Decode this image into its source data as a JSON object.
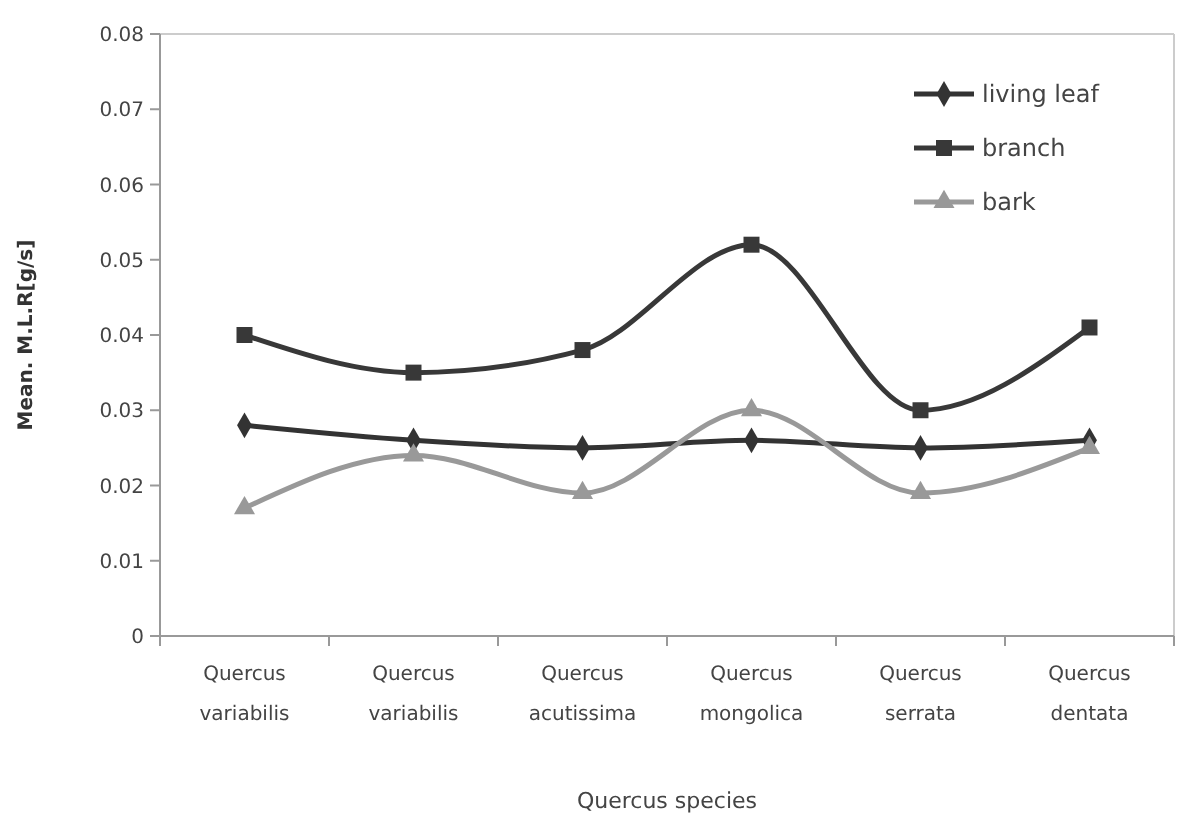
{
  "chart_data": {
    "type": "line",
    "xlabel": "Quercus species",
    "ylabel": "Mean. M.L.R[g/s]",
    "categories": [
      "Quercus variabilis",
      "Quercus variabilis",
      "Quercus acutissima",
      "Quercus mongolica",
      "Quercus serrata",
      "Quercus dentata"
    ],
    "series": [
      {
        "name": "living leaf",
        "color": "#333333",
        "marker": "diamond",
        "values": [
          0.028,
          0.026,
          0.025,
          0.026,
          0.025,
          0.026
        ]
      },
      {
        "name": "branch",
        "color": "#383838",
        "marker": "square",
        "values": [
          0.04,
          0.035,
          0.038,
          0.052,
          0.03,
          0.041
        ]
      },
      {
        "name": "bark",
        "color": "#999999",
        "marker": "triangle",
        "values": [
          0.017,
          0.024,
          0.019,
          0.03,
          0.019,
          0.025
        ]
      }
    ],
    "ylim": [
      0,
      0.08
    ],
    "yticks": [
      0,
      0.01,
      0.02,
      0.03,
      0.04,
      0.05,
      0.06,
      0.07,
      0.08
    ],
    "grid": false,
    "legend": "top right",
    "line_style": "solid"
  }
}
